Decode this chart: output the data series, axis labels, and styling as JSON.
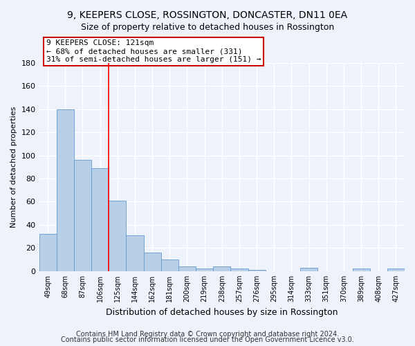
{
  "title": "9, KEEPERS CLOSE, ROSSINGTON, DONCASTER, DN11 0EA",
  "subtitle": "Size of property relative to detached houses in Rossington",
  "xlabel": "Distribution of detached houses by size in Rossington",
  "ylabel": "Number of detached properties",
  "categories": [
    "49sqm",
    "68sqm",
    "87sqm",
    "106sqm",
    "125sqm",
    "144sqm",
    "162sqm",
    "181sqm",
    "200sqm",
    "219sqm",
    "238sqm",
    "257sqm",
    "276sqm",
    "295sqm",
    "314sqm",
    "333sqm",
    "351sqm",
    "370sqm",
    "389sqm",
    "408sqm",
    "427sqm"
  ],
  "values": [
    32,
    140,
    96,
    89,
    61,
    31,
    16,
    10,
    4,
    2,
    4,
    2,
    1,
    0,
    0,
    3,
    0,
    0,
    2,
    0,
    2
  ],
  "bar_color": "#b8cfe8",
  "bar_edge_color": "#6699cc",
  "red_line_x": 3.5,
  "annotation_line1": "9 KEEPERS CLOSE: 121sqm",
  "annotation_line2": "← 68% of detached houses are smaller (331)",
  "annotation_line3": "31% of semi-detached houses are larger (151) →",
  "annotation_box_color": "#ffffff",
  "annotation_box_edge_color": "#cc0000",
  "ylim": [
    0,
    180
  ],
  "yticks": [
    0,
    20,
    40,
    60,
    80,
    100,
    120,
    140,
    160,
    180
  ],
  "footer_line1": "Contains HM Land Registry data © Crown copyright and database right 2024.",
  "footer_line2": "Contains public sector information licensed under the Open Government Licence v3.0.",
  "background_color": "#eef2fb",
  "grid_color": "#ffffff",
  "title_fontsize": 10,
  "subtitle_fontsize": 9,
  "annotation_fontsize": 8,
  "footer_fontsize": 7,
  "ylabel_fontsize": 8,
  "xlabel_fontsize": 9
}
